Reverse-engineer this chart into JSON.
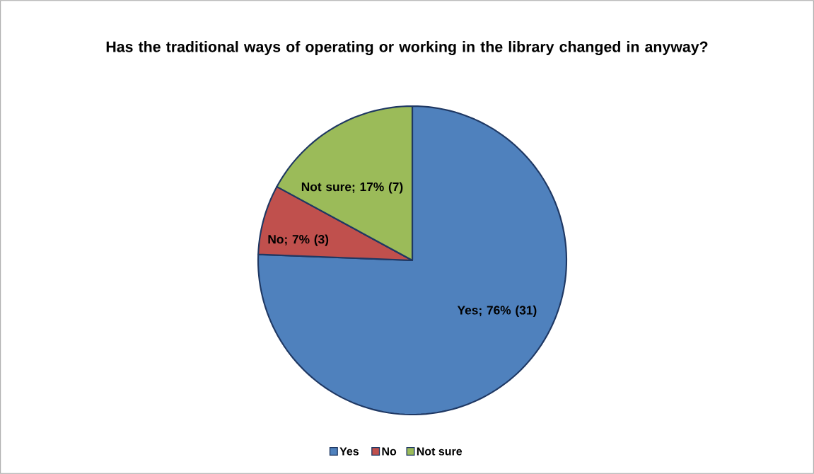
{
  "chart_data": {
    "type": "pie",
    "title": "Has the traditional ways of operating or working in the library changed in anyway?",
    "categories": [
      "Yes",
      "No",
      "Not sure"
    ],
    "values": [
      31,
      3,
      7
    ],
    "value_labels": [
      "Yes; 76% (31)",
      "No; 7% (3)",
      "Not sure; 17% (7)"
    ],
    "colors": [
      "#4f81bd",
      "#c0504d",
      "#9bbb59"
    ],
    "legend": "bottom"
  }
}
